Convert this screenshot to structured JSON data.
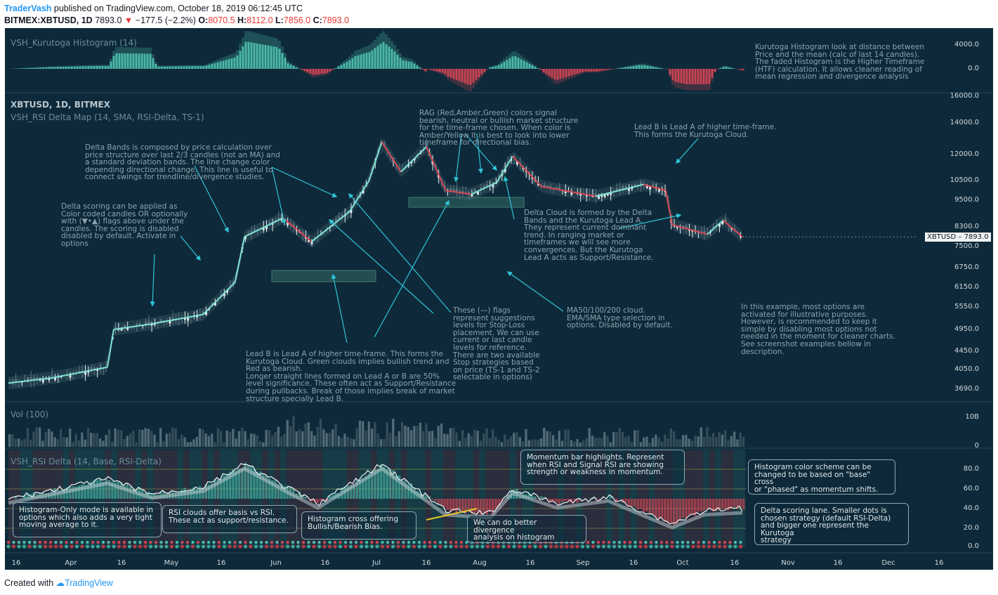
{
  "header": {
    "author": "TraderVash",
    "published": "published on TradingView.com, October 18, 2019 06:12:45 UTC",
    "symbol": "BITMEX:XBTUSD, 1D",
    "last": "7893.0",
    "change": "−177.5 (−2.2%)",
    "open_label": "O:",
    "open": "8070.5",
    "high_label": "H:",
    "high": "8112.0",
    "low_label": "L:",
    "low": "7856.0",
    "close_label": "C:",
    "close": "7893.0",
    "down_arrow": "▼"
  },
  "footer": {
    "created_with": "Created with",
    "brand": "TradingView"
  },
  "panes": {
    "kurutoga_title": "VSH_Kurutoga Histogram (14)",
    "main_symbol": "XBTUSD, 1D, BITMEX",
    "main_indicator": "VSH_RSI Delta Map (14, SMA, RSI-Delta, TS-1)",
    "vol_title": "Vol (100)",
    "rsi_title": "VSH_RSI Delta (14, Base, RSI-Delta)"
  },
  "annotations": {
    "kurutoga": "Kurutoga Histogram look at distance between\nPrice and the mean (calc of last 14 candles).\nThe faded Histogram is the Higher Timeframe\n(HTF) calculation. It allows cleaner reading of\nmean regression and divergence analysis",
    "delta_bands": "Delta Bands is composed by price calculation over\nprice structure over last 2/3 candles (not an MA) and\na standard deviation bands. The line change color\ndepending directional change. This line is useful to\nconnect swings for trendline/divergence studies.",
    "delta_scoring": "Delta scoring can be applied as\nColor coded candles OR optionally\nwith (▼•▲) flags above under the\ncandles. The scoring is disabled\ndisabled by default. Activate in\noptions",
    "rag": "RAG (Red,Amber,Green) colors signal\nbearish, neutral or bullish market structure\nfor the time-frame chosen. When color is\nAmber/Yellow it is best to look into lower\ntimeframe for directional bias.",
    "lead_b_top": "Lead B is Lead A of higher time-frame.\nThis forms the Kurutoga Cloud.",
    "delta_cloud": "Delta Cloud is formed by the Delta\nBands and the Kurutoga Lead A.\nThey represent current dominant\ntrend. In ranging market or\ntimeframes we will see more\nconvergences. But the Kurutoga\nLead A acts as Support/Resistance.",
    "flags": "These (—) flags\nrepresent suggestions\nlevels for Stop-Loss\nplacement. We can use\ncurrent or last candle\nlevels for reference.\nThere are two available\nStop strategies based\non price (TS-1 and TS-2\nselectable in options)",
    "ma": "MA50/100/200 cloud.\nEMA/SMA type selection in\noptions. Disabled by default.",
    "example": "In this example, most options are\nactivated for illustrative purposes.\nHowever, is recommended to keep it\nsimple by disabling most options not\nneeded in the moment for cleaner charts.\nSee screenshot examples bellow in\ndescription.",
    "lead_b_bottom": "Lead B is Lead A of higher time-frame. This forms the\nKurutoga Cloud. Green clouds implies bullish trend and\nRed as bearish.\nLonger straight lines formed on Lead A or B are  50%\nlevel significance. These often act as Support/Resistance\nduring pullbacks. Break of those implies break of market\nstructure specially Lead B."
  },
  "boxes": {
    "momentum": "Momentum bar highlights. Represent\nwhen RSI and Signal RSI are showing\nstrength or weakness in  momentum.",
    "hist_color": "Histogram color scheme can be\nchanged to be based on \"base\" cross\nor \"phased\" as momentum shifts.",
    "hist_only": "Histogram-Only mode is available in\noptions which also adds a very tight\nmoving average to it.",
    "rsi_clouds": "RSI clouds offer basis vs RSI.\nThese act as support/resistance.",
    "hist_cross": "Histogram cross offering\nBullish/Bearish Bias.",
    "divergence": "We can do better divergence\nanalysis on histogram",
    "delta_lane": "Delta scoring lane. Smaller dots is\nchosen strategy (default RSI-Delta)\nand bigger one represent the Kurutoga\nstrategy"
  },
  "price_tag": {
    "symbol": "XBTUSD",
    "value": "7893.0"
  },
  "axes": {
    "kurutoga_ticks": [
      "4000.0",
      "0.0"
    ],
    "price_ticks": [
      "16000.0",
      "14000.0",
      "12000.0",
      "10500.0",
      "9500.0",
      "8300.0",
      "7500.0",
      "6750.0",
      "6150.0",
      "5550.0",
      "4950.0",
      "4450.0",
      "4050.0",
      "3690.0"
    ],
    "vol_ticks": [
      "10B",
      "0"
    ],
    "rsi_ticks": [
      "80.0",
      "60.0",
      "40.0",
      "20.0",
      "0.0"
    ],
    "time_ticks": [
      "16",
      "Apr",
      "16",
      "May",
      "16",
      "Jun",
      "16",
      "Jul",
      "16",
      "Aug",
      "16",
      "Sep",
      "16",
      "Oct",
      "16",
      "Nov",
      "16",
      "Dec",
      "16"
    ]
  },
  "colors": {
    "background": "#0e2a3a",
    "bull": "#4fc3b0",
    "bear": "#d84654",
    "annotation": "#8fa2ad",
    "arrow": "#2ec4d8"
  },
  "chart_data": [
    {
      "type": "line",
      "title": "XBTUSD, 1D, BITMEX",
      "x": [
        "2019-03-01",
        "2019-03-15",
        "2019-04-01",
        "2019-04-03",
        "2019-04-15",
        "2019-05-01",
        "2019-05-11",
        "2019-05-14",
        "2019-05-26",
        "2019-06-04",
        "2019-06-16",
        "2019-06-22",
        "2019-06-26",
        "2019-07-02",
        "2019-07-10",
        "2019-07-16",
        "2019-07-24",
        "2019-08-01",
        "2019-08-06",
        "2019-08-15",
        "2019-09-01",
        "2019-09-16",
        "2019-09-23",
        "2019-09-25",
        "2019-10-06",
        "2019-10-11",
        "2019-10-17"
      ],
      "series": [
        {
          "values": [
            3800,
            3900,
            4100,
            4950,
            5100,
            5350,
            6300,
            7900,
            8700,
            7700,
            9000,
            10500,
            12800,
            11000,
            12500,
            10000,
            9800,
            10400,
            11900,
            10200,
            9700,
            10300,
            10000,
            8400,
            8000,
            8600,
            7893
          ]
        }
      ],
      "ylim": [
        3690,
        16000
      ]
    },
    {
      "type": "line",
      "title": "VSH_RSI Delta (14, Base, RSI-Delta)",
      "x": [
        "2019-03-01",
        "2019-04-01",
        "2019-04-15",
        "2019-05-01",
        "2019-05-14",
        "2019-05-28",
        "2019-06-06",
        "2019-06-26",
        "2019-07-16",
        "2019-07-30",
        "2019-08-06",
        "2019-08-20",
        "2019-09-05",
        "2019-09-25",
        "2019-10-05",
        "2019-10-17"
      ],
      "series": [
        {
          "values": [
            50,
            70,
            55,
            62,
            85,
            60,
            45,
            85,
            38,
            35,
            60,
            45,
            52,
            25,
            38,
            40
          ]
        }
      ],
      "ylim": [
        0,
        100
      ]
    }
  ]
}
